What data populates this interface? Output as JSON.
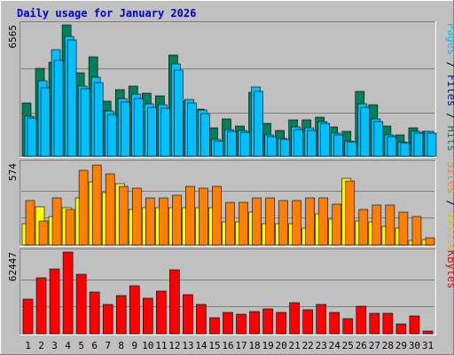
{
  "chart_data": {
    "type": "bar",
    "title": "Daily usage for January 2026",
    "colors": {
      "background": "#c0c0c0",
      "frame_light": "#ffffff",
      "frame_dark": "#808080",
      "title": "#0000cc",
      "gridline": "#808080",
      "hits": "#00805c",
      "files": "#00c0ff",
      "pages": "#00c0ff",
      "visits": "#ffff00",
      "sites": "#ff8000",
      "kbytes": "#ff0000",
      "sep_slash": "#000000",
      "weekend_tick": "#007f3f"
    },
    "categories": [
      "1",
      "2",
      "3",
      "4",
      "5",
      "6",
      "7",
      "8",
      "9",
      "10",
      "11",
      "12",
      "13",
      "14",
      "15",
      "16",
      "17",
      "18",
      "19",
      "20",
      "21",
      "22",
      "23",
      "24",
      "25",
      "26",
      "27",
      "28",
      "29",
      "30",
      "31"
    ],
    "weekend_days": [
      "3",
      "4",
      "10",
      "11",
      "17",
      "18",
      "24",
      "25",
      "31"
    ],
    "panels": [
      {
        "id": "hits-files-pages",
        "ymax_label": "6565",
        "ymax": 6565,
        "right_label": [
          {
            "text": "Pages",
            "color": "#00c0ff"
          },
          {
            "text": " / ",
            "color": "#000000"
          },
          {
            "text": "Files",
            "color": "#0000cc"
          },
          {
            "text": " / ",
            "color": "#000000"
          },
          {
            "text": "Hits",
            "color": "#00805c"
          }
        ],
        "series": [
          {
            "name": "Hits",
            "values": [
              2680,
              4370,
              4710,
              6565,
              4150,
              4960,
              2770,
              3320,
              3500,
              3170,
              3000,
              5060,
              2730,
              2350,
              1430,
              1850,
              1510,
              3190,
              1640,
              1280,
              1820,
              1800,
              1960,
              1450,
              1250,
              3250,
              2580,
              1510,
              1080,
              1410,
              1250
            ]
          },
          {
            "name": "Files",
            "values": [
              2000,
              3750,
              5330,
              6000,
              3500,
              3940,
              2250,
              2900,
              3120,
              2600,
              2570,
              4600,
              2830,
              2300,
              830,
              1340,
              1300,
              3480,
              1050,
              900,
              1450,
              1400,
              1750,
              1150,
              750,
              2600,
              1850,
              1050,
              720,
              1240,
              1230
            ]
          },
          {
            "name": "Pages",
            "values": [
              1900,
              3400,
              4800,
              5800,
              3350,
              3700,
              2100,
              2700,
              2900,
              2450,
              2400,
              4300,
              2650,
              2150,
              760,
              1240,
              1200,
              3250,
              970,
              830,
              1340,
              1300,
              1620,
              1060,
              690,
              2420,
              1720,
              970,
              660,
              1150,
              1140
            ]
          }
        ]
      },
      {
        "id": "visits-sites",
        "ymax_label": "574",
        "ymax": 574,
        "right_label": [
          {
            "text": "Sites",
            "color": "#ff8000"
          },
          {
            "text": " / ",
            "color": "#000000"
          },
          {
            "text": "Visits",
            "color": "#cccc00"
          }
        ],
        "series": [
          {
            "name": "Visits",
            "values": [
              150,
              270,
              200,
              265,
              330,
              440,
              370,
              430,
              250,
              265,
              265,
              265,
              265,
              265,
              265,
              160,
              160,
              230,
              150,
              150,
              150,
              120,
              220,
              180,
              470,
              170,
              160,
              130,
              120,
              30,
              40
            ]
          },
          {
            "name": "Sites",
            "values": [
              310,
              170,
              330,
              250,
              525,
              560,
              500,
              410,
              400,
              330,
              330,
              350,
              410,
              400,
              410,
              300,
              300,
              330,
              330,
              310,
              310,
              330,
              330,
              290,
              450,
              250,
              280,
              280,
              230,
              200,
              50
            ]
          }
        ]
      },
      {
        "id": "kbytes",
        "ymax_label": "62447",
        "ymax": 62447,
        "right_label": [
          {
            "text": "KBytes",
            "color": "#ff0000"
          }
        ],
        "series": [
          {
            "name": "KBytes",
            "values": [
              26800,
              43000,
              49800,
              62447,
              45200,
              31800,
              22700,
              29300,
              36400,
              27300,
              32300,
              48800,
              30100,
              22700,
              12000,
              16200,
              14900,
              17300,
              18800,
              16300,
              24000,
              18200,
              22400,
              16000,
              11700,
              20800,
              15700,
              15600,
              7500,
              13700,
              1800
            ]
          }
        ]
      }
    ]
  }
}
